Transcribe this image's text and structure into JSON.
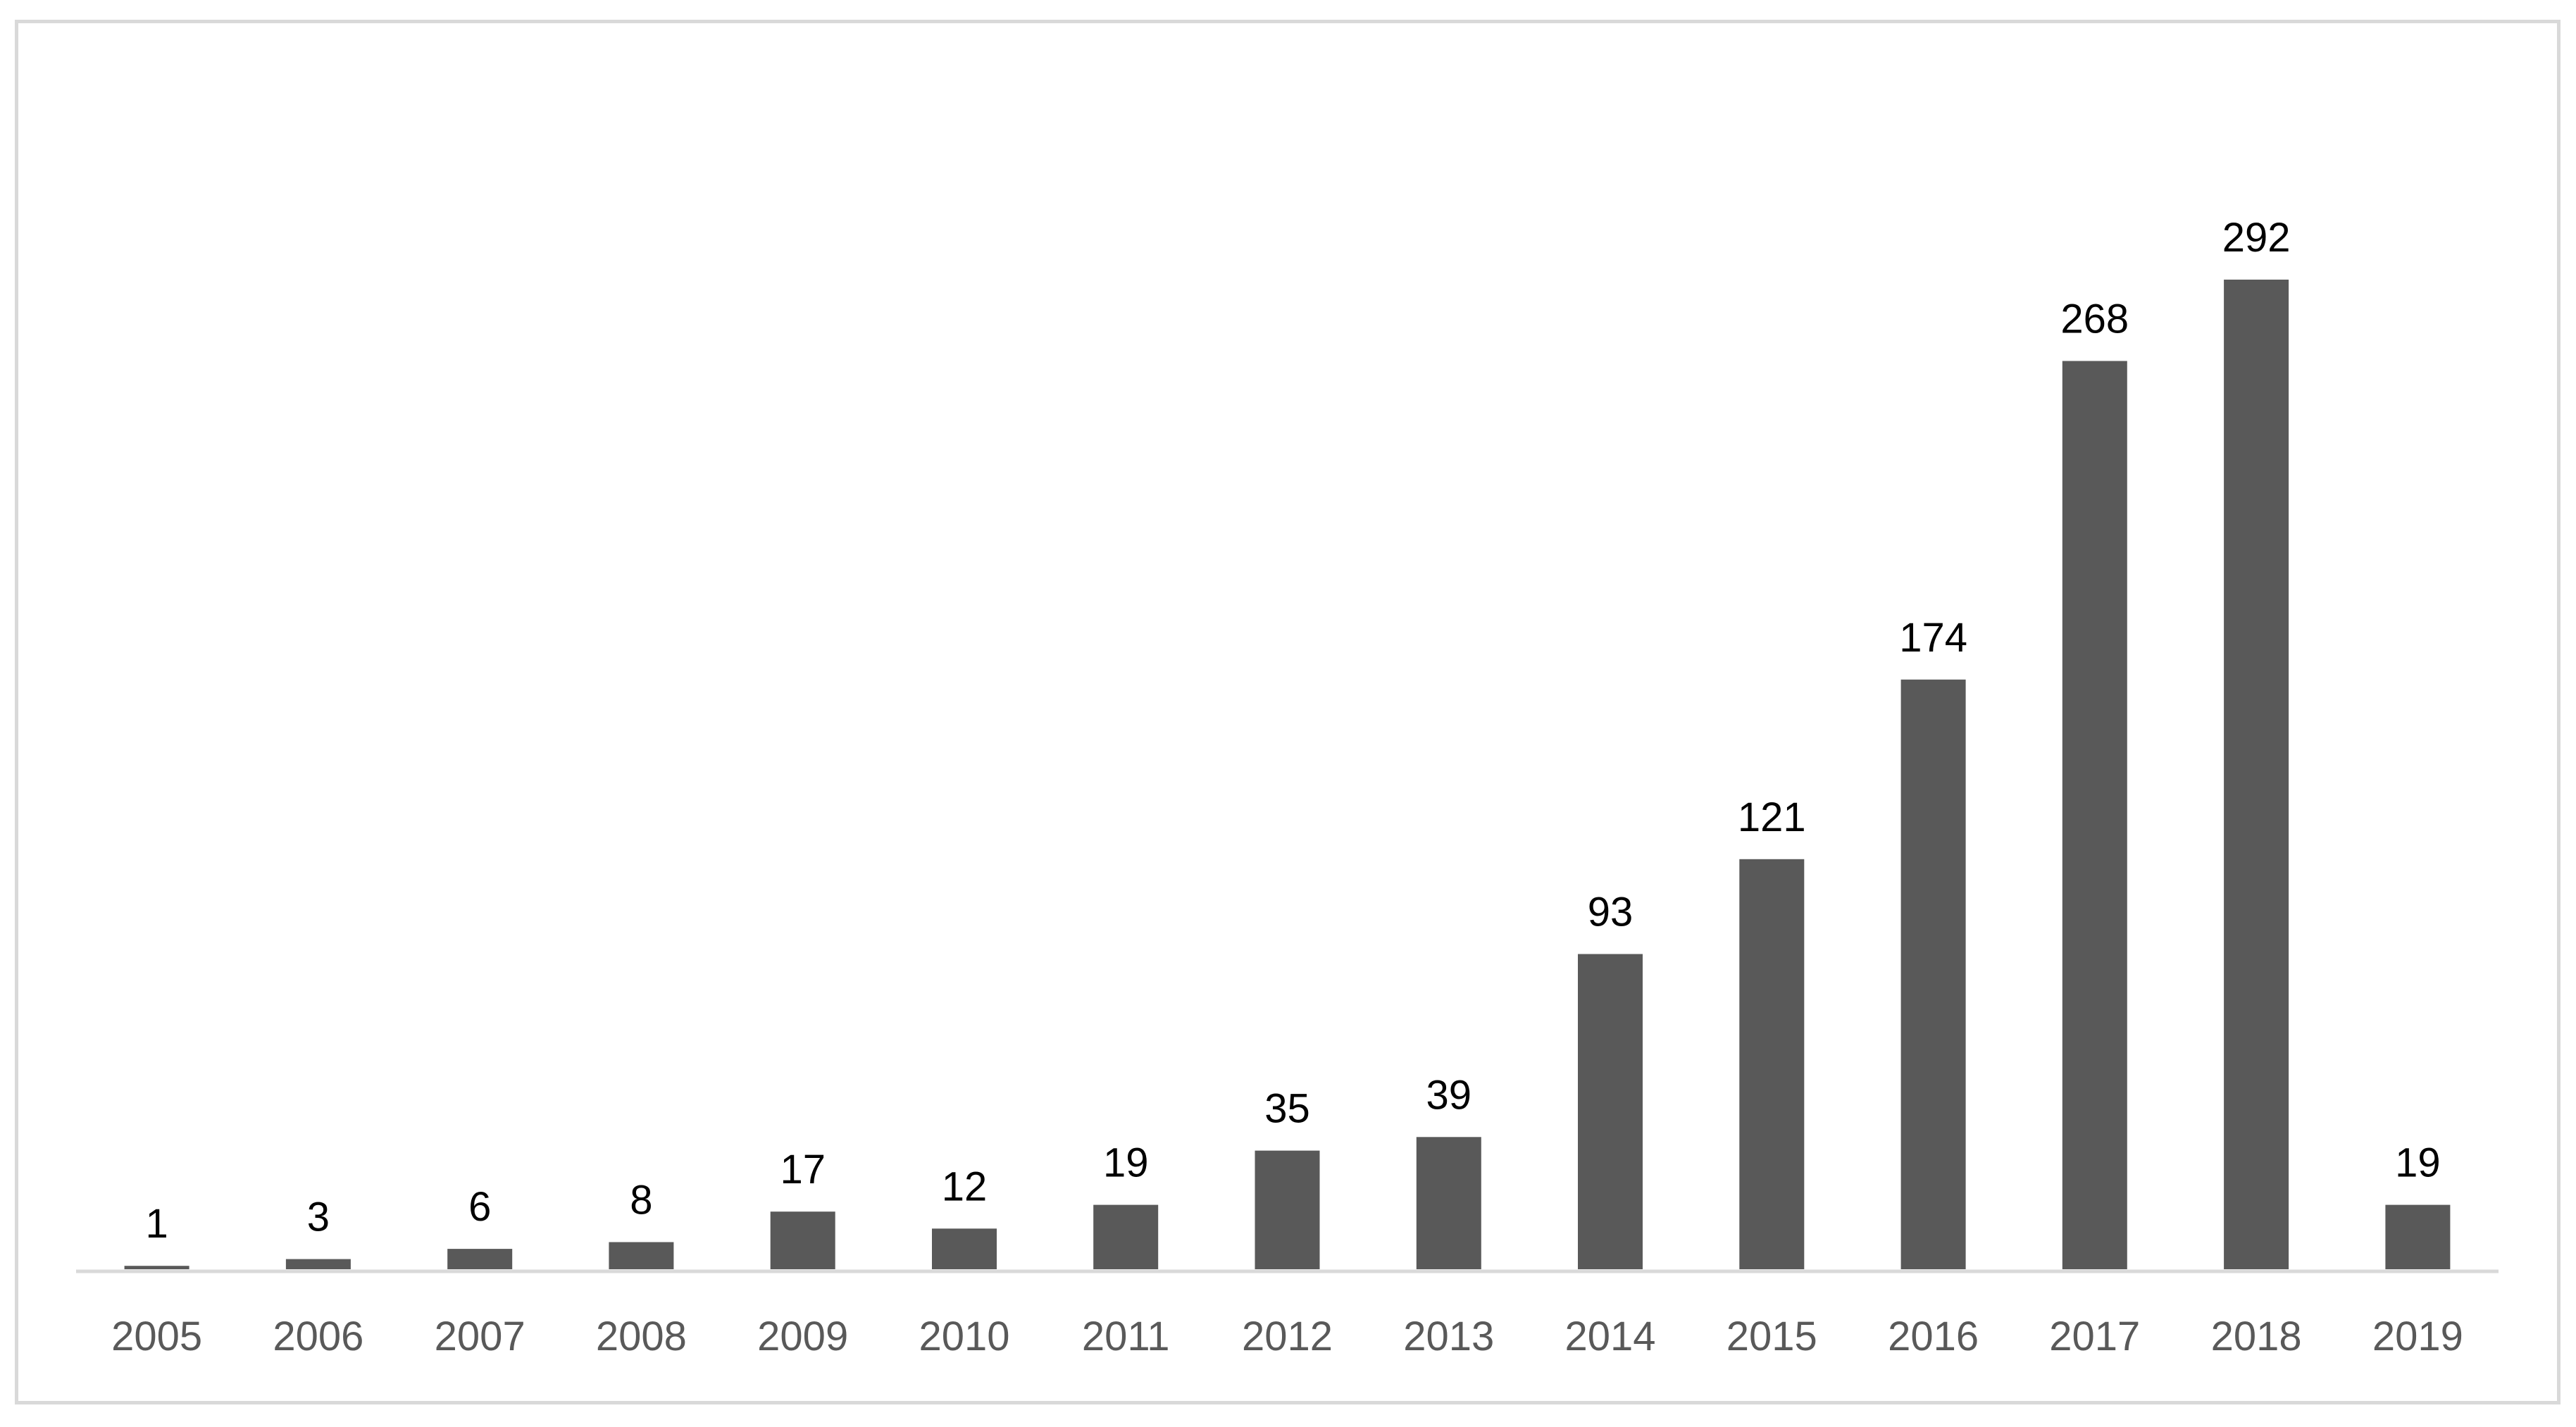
{
  "chart_data": {
    "type": "bar",
    "title": "",
    "xlabel": "",
    "ylabel": "",
    "categories": [
      "2005",
      "2006",
      "2007",
      "2008",
      "2009",
      "2010",
      "2011",
      "2012",
      "2013",
      "2014",
      "2015",
      "2016",
      "2017",
      "2018",
      "2019"
    ],
    "values": [
      1,
      3,
      6,
      8,
      17,
      12,
      19,
      35,
      39,
      93,
      121,
      174,
      268,
      292,
      19
    ],
    "ylim": [
      0,
      292
    ],
    "grid": false,
    "legend": "none",
    "data_labels": true,
    "bar_color": "#595959",
    "axis_color": "#d9d9d9",
    "tick_label_color": "#595959",
    "data_label_color": "#000000"
  }
}
